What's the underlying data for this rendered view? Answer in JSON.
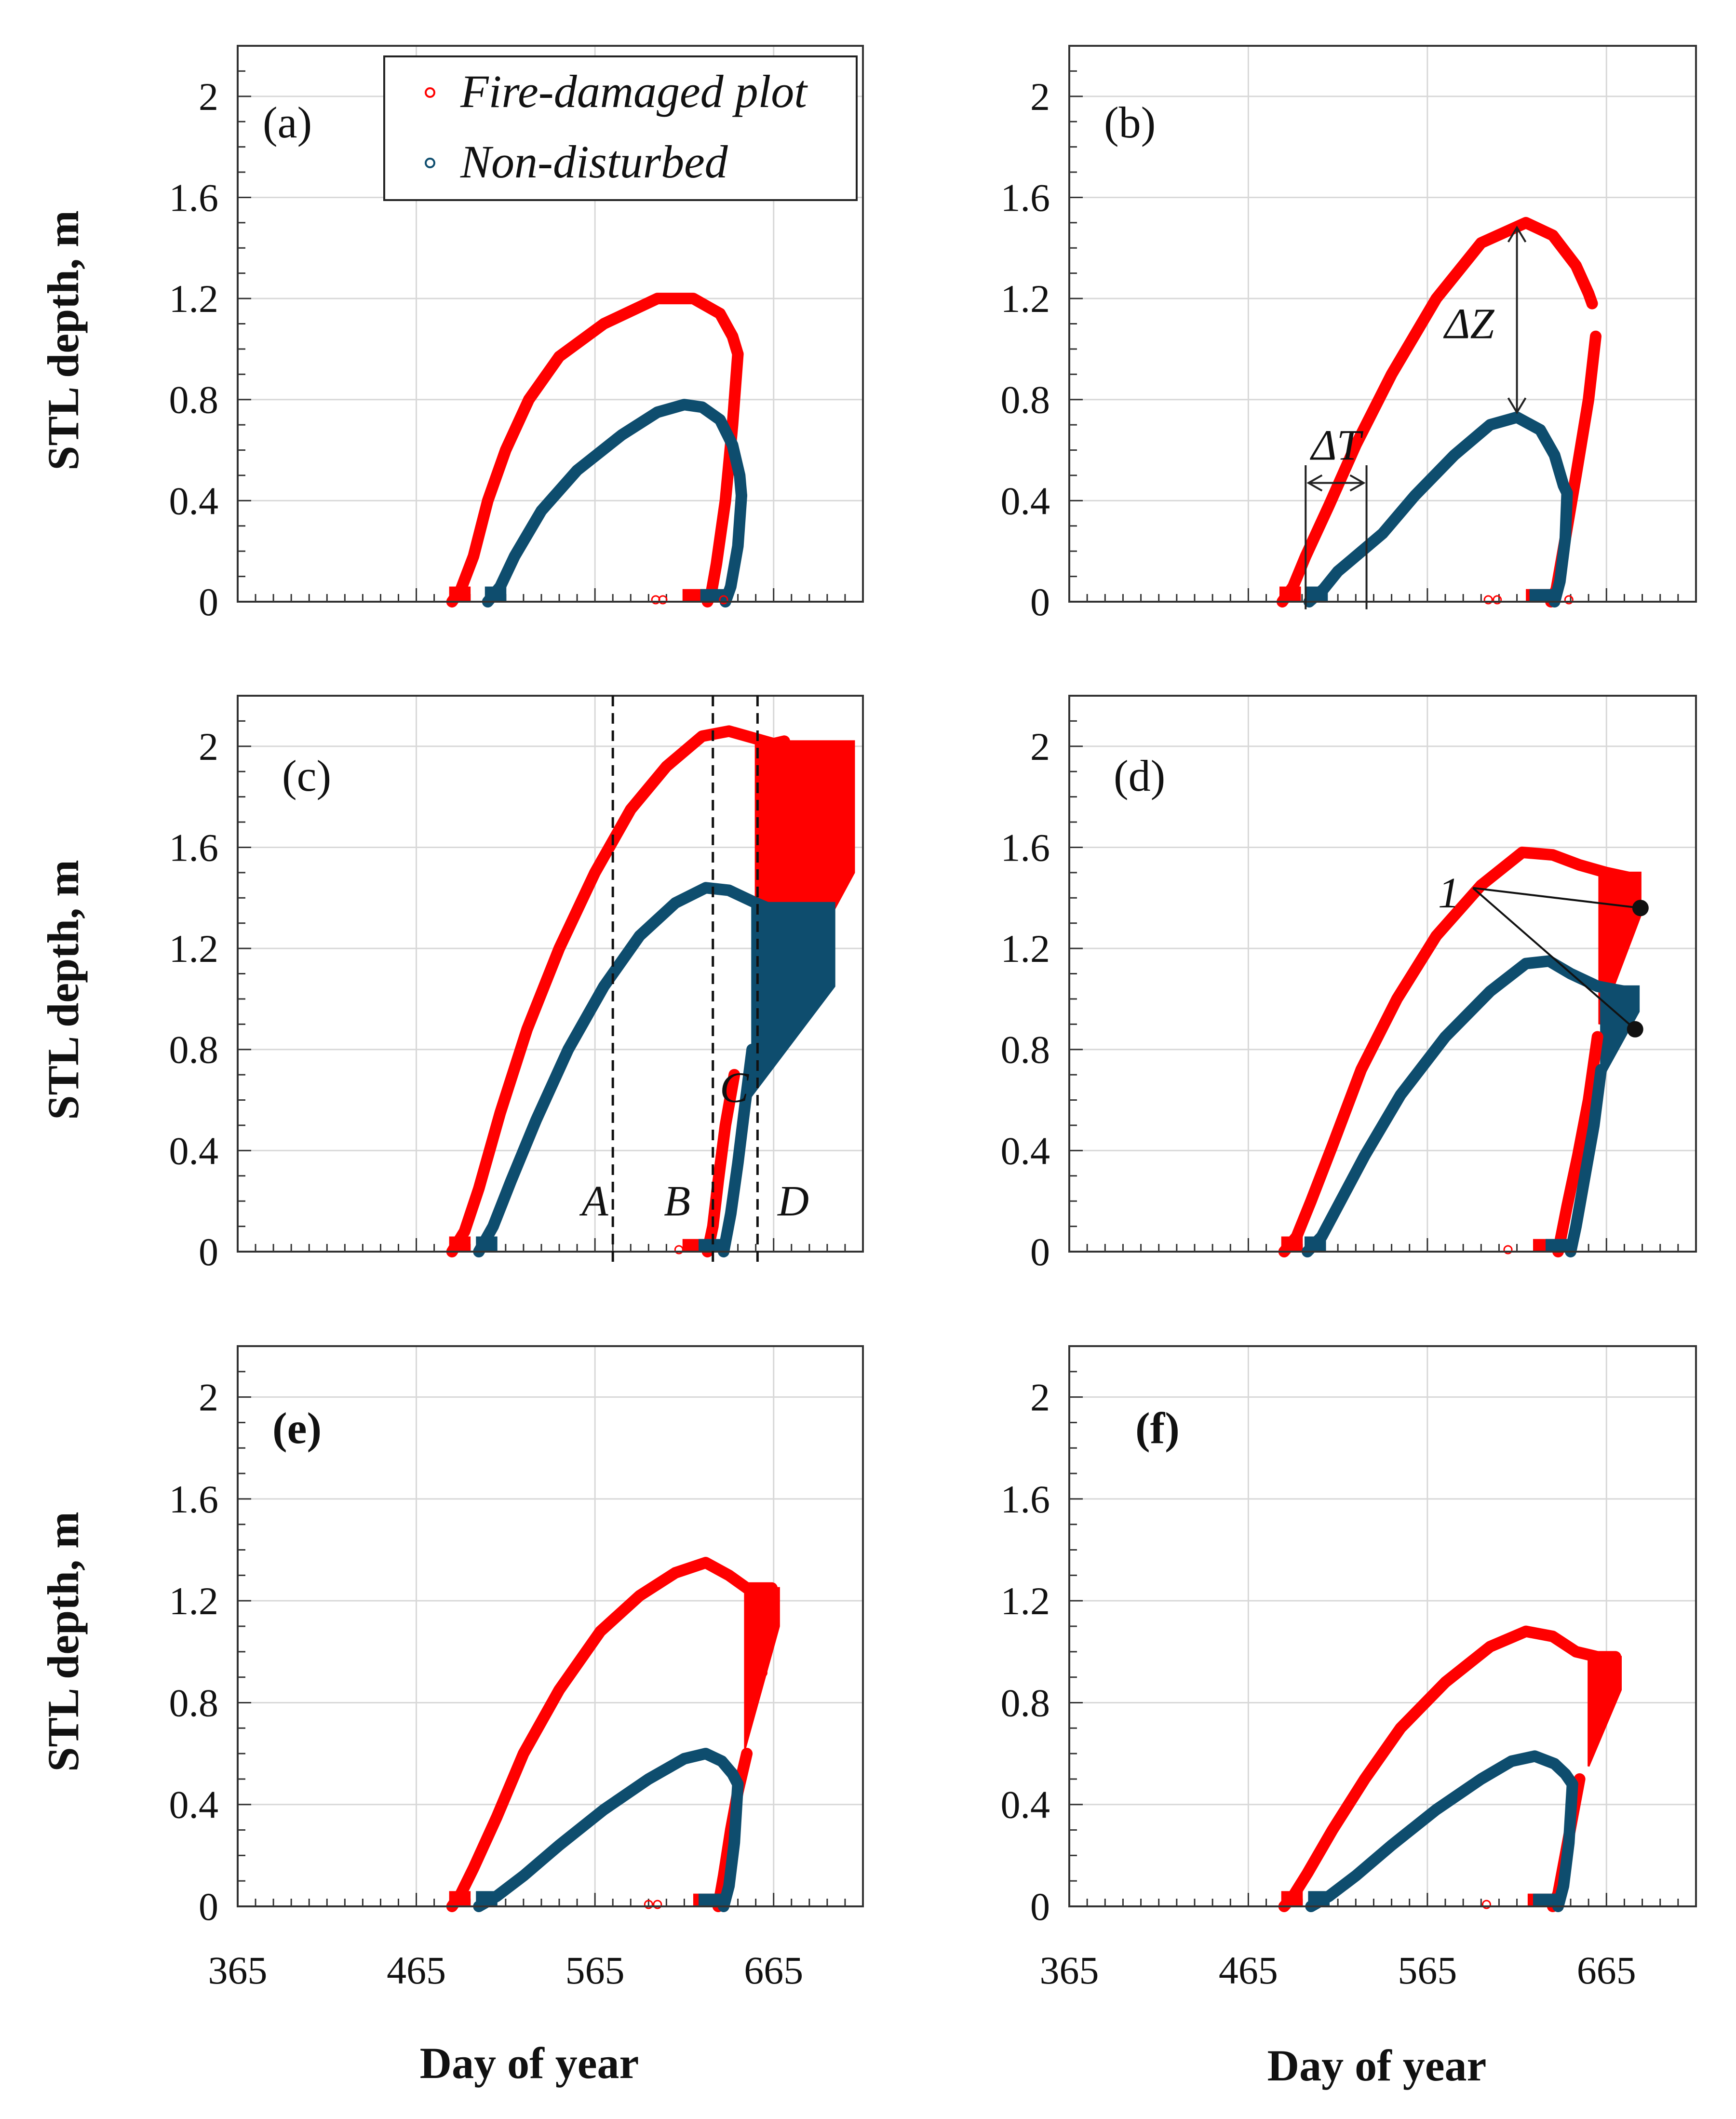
{
  "colors": {
    "fire": "#ff0000",
    "nondisturbed": "#0e4d6e",
    "grid": "#d8d8d8",
    "axis": "#333333"
  },
  "chart_data": {
    "type": "scatter",
    "xlabel": "Day of year",
    "ylabel": "STL depth, m",
    "xlim": [
      365,
      715
    ],
    "ylim": [
      0,
      2.2
    ],
    "xticks": [
      365,
      465,
      565,
      665
    ],
    "yticks": [
      0,
      0.4,
      0.8,
      1.2,
      1.6,
      2
    ],
    "yticklabels": [
      "0",
      "0.4",
      "0.8",
      "1.2",
      "1.6",
      "2"
    ],
    "legend": {
      "position": "top-left",
      "entries": [
        "Fire-damaged plot",
        "Non-disturbed"
      ]
    },
    "panels": [
      {
        "label": "(a)",
        "fire": {
          "thaw": [
            [
              485,
              0
            ],
            [
              490,
              0.05
            ],
            [
              497,
              0.18
            ],
            [
              505,
              0.4
            ],
            [
              515,
              0.6
            ],
            [
              528,
              0.8
            ],
            [
              545,
              0.97
            ],
            [
              570,
              1.1
            ],
            [
              600,
              1.2
            ],
            [
              620,
              1.2
            ],
            [
              635,
              1.14
            ],
            [
              642,
              1.05
            ],
            [
              645,
              0.98
            ]
          ],
          "freeze": [
            [
              645,
              0.98
            ],
            [
              642,
              0.7
            ],
            [
              638,
              0.4
            ],
            [
              633,
              0.15
            ],
            [
              630,
              0.03
            ],
            [
              628,
              0
            ]
          ]
        },
        "nondisturbed": {
          "thaw": [
            [
              505,
              0
            ],
            [
              512,
              0.06
            ],
            [
              520,
              0.18
            ],
            [
              535,
              0.36
            ],
            [
              555,
              0.52
            ],
            [
              580,
              0.66
            ],
            [
              600,
              0.75
            ],
            [
              615,
              0.78
            ],
            [
              625,
              0.77
            ],
            [
              635,
              0.72
            ],
            [
              642,
              0.62
            ],
            [
              646,
              0.5
            ],
            [
              647,
              0.42
            ]
          ],
          "freeze": [
            [
              647,
              0.42
            ],
            [
              645,
              0.22
            ],
            [
              641,
              0.06
            ],
            [
              638,
              0
            ]
          ]
        }
      },
      {
        "label": "(b)",
        "fire": {
          "thaw": [
            [
              484,
              0
            ],
            [
              490,
              0.06
            ],
            [
              497,
              0.18
            ],
            [
              510,
              0.38
            ],
            [
              525,
              0.62
            ],
            [
              545,
              0.9
            ],
            [
              570,
              1.2
            ],
            [
              595,
              1.42
            ],
            [
              620,
              1.5
            ],
            [
              635,
              1.45
            ],
            [
              648,
              1.33
            ],
            [
              655,
              1.22
            ],
            [
              657,
              1.18
            ]
          ],
          "freeze": [
            [
              659,
              1.05
            ],
            [
              655,
              0.8
            ],
            [
              648,
              0.5
            ],
            [
              642,
              0.25
            ],
            [
              637,
              0.05
            ],
            [
              634,
              0
            ]
          ]
        },
        "nondisturbed": {
          "thaw": [
            [
              499,
              0
            ],
            [
              507,
              0.05
            ],
            [
              515,
              0.12
            ],
            [
              525,
              0.18
            ],
            [
              540,
              0.27
            ],
            [
              558,
              0.42
            ],
            [
              580,
              0.58
            ],
            [
              600,
              0.7
            ],
            [
              615,
              0.73
            ],
            [
              628,
              0.68
            ],
            [
              636,
              0.58
            ],
            [
              641,
              0.46
            ],
            [
              643,
              0.43
            ]
          ],
          "freeze": [
            [
              643,
              0.43
            ],
            [
              642,
              0.25
            ],
            [
              639,
              0.08
            ],
            [
              636,
              0
            ]
          ]
        }
      },
      {
        "label": "(c)",
        "fire": {
          "thaw": [
            [
              485,
              0
            ],
            [
              492,
              0.08
            ],
            [
              500,
              0.25
            ],
            [
              512,
              0.55
            ],
            [
              527,
              0.88
            ],
            [
              545,
              1.2
            ],
            [
              565,
              1.5
            ],
            [
              585,
              1.75
            ],
            [
              605,
              1.92
            ],
            [
              625,
              2.04
            ],
            [
              640,
              2.06
            ],
            [
              655,
              2.03
            ],
            [
              665,
              2.01
            ],
            [
              671,
              2.02
            ]
          ],
          "freeze": [
            [
              643,
              0.7
            ],
            [
              638,
              0.5
            ],
            [
              634,
              0.28
            ],
            [
              631,
              0.1
            ],
            [
              628,
              0
            ]
          ]
        },
        "nondisturbed": {
          "thaw": [
            [
              500,
              0
            ],
            [
              508,
              0.1
            ],
            [
              518,
              0.28
            ],
            [
              532,
              0.52
            ],
            [
              550,
              0.8
            ],
            [
              570,
              1.05
            ],
            [
              590,
              1.25
            ],
            [
              610,
              1.38
            ],
            [
              627,
              1.44
            ],
            [
              640,
              1.43
            ],
            [
              655,
              1.38
            ],
            [
              665,
              1.35
            ]
          ],
          "freeze": [
            [
              653,
              0.8
            ],
            [
              649,
              0.58
            ],
            [
              645,
              0.35
            ],
            [
              641,
              0.15
            ],
            [
              637,
              0
            ]
          ]
        }
      },
      {
        "label": "(d)",
        "fire": {
          "thaw": [
            [
              485,
              0
            ],
            [
              492,
              0.06
            ],
            [
              500,
              0.2
            ],
            [
              512,
              0.42
            ],
            [
              528,
              0.72
            ],
            [
              548,
              1.0
            ],
            [
              570,
              1.25
            ],
            [
              595,
              1.45
            ],
            [
              618,
              1.58
            ],
            [
              635,
              1.57
            ],
            [
              650,
              1.53
            ],
            [
              665,
              1.5
            ],
            [
              678,
              1.48
            ]
          ],
          "freeze": [
            [
              660,
              0.85
            ],
            [
              655,
              0.6
            ],
            [
              649,
              0.38
            ],
            [
              643,
              0.18
            ],
            [
              638,
              0
            ]
          ]
        },
        "nondisturbed": {
          "thaw": [
            [
              498,
              0
            ],
            [
              506,
              0.06
            ],
            [
              515,
              0.18
            ],
            [
              530,
              0.38
            ],
            [
              550,
              0.62
            ],
            [
              575,
              0.85
            ],
            [
              600,
              1.03
            ],
            [
              620,
              1.14
            ],
            [
              633,
              1.15
            ],
            [
              645,
              1.1
            ],
            [
              660,
              1.05
            ],
            [
              675,
              1.03
            ]
          ],
          "freeze": [
            [
              662,
              0.72
            ],
            [
              658,
              0.5
            ],
            [
              653,
              0.3
            ],
            [
              648,
              0.1
            ],
            [
              645,
              0
            ]
          ]
        }
      },
      {
        "label": "(e)",
        "fire": {
          "thaw": [
            [
              485,
              0
            ],
            [
              490,
              0.05
            ],
            [
              497,
              0.15
            ],
            [
              510,
              0.35
            ],
            [
              525,
              0.6
            ],
            [
              545,
              0.85
            ],
            [
              568,
              1.08
            ],
            [
              590,
              1.22
            ],
            [
              610,
              1.31
            ],
            [
              627,
              1.35
            ],
            [
              640,
              1.3
            ],
            [
              650,
              1.25
            ],
            [
              664,
              1.25
            ]
          ],
          "freeze": [
            [
              650,
              0.6
            ],
            [
              645,
              0.45
            ],
            [
              641,
              0.3
            ],
            [
              637,
              0.12
            ],
            [
              634,
              0
            ]
          ]
        },
        "nondisturbed": {
          "thaw": [
            [
              500,
              0
            ],
            [
              510,
              0.04
            ],
            [
              525,
              0.12
            ],
            [
              545,
              0.24
            ],
            [
              570,
              0.38
            ],
            [
              595,
              0.5
            ],
            [
              615,
              0.58
            ],
            [
              627,
              0.6
            ],
            [
              636,
              0.57
            ],
            [
              642,
              0.52
            ],
            [
              645,
              0.48
            ]
          ],
          "freeze": [
            [
              645,
              0.48
            ],
            [
              643,
              0.25
            ],
            [
              640,
              0.08
            ],
            [
              637,
              0
            ]
          ]
        }
      },
      {
        "label": "(f)",
        "fire": {
          "thaw": [
            [
              485,
              0
            ],
            [
              490,
              0.04
            ],
            [
              498,
              0.13
            ],
            [
              512,
              0.3
            ],
            [
              530,
              0.5
            ],
            [
              550,
              0.7
            ],
            [
              575,
              0.88
            ],
            [
              600,
              1.02
            ],
            [
              620,
              1.08
            ],
            [
              635,
              1.06
            ],
            [
              648,
              1.0
            ],
            [
              660,
              0.98
            ],
            [
              670,
              0.98
            ]
          ],
          "freeze": [
            [
              650,
              0.5
            ],
            [
              646,
              0.35
            ],
            [
              642,
              0.2
            ],
            [
              638,
              0.05
            ],
            [
              635,
              0
            ]
          ]
        },
        "nondisturbed": {
          "thaw": [
            [
              500,
              0
            ],
            [
              510,
              0.04
            ],
            [
              525,
              0.12
            ],
            [
              545,
              0.24
            ],
            [
              570,
              0.38
            ],
            [
              595,
              0.5
            ],
            [
              612,
              0.57
            ],
            [
              625,
              0.59
            ],
            [
              636,
              0.56
            ],
            [
              642,
              0.52
            ],
            [
              646,
              0.48
            ]
          ],
          "freeze": [
            [
              646,
              0.48
            ],
            [
              644,
              0.25
            ],
            [
              641,
              0.08
            ],
            [
              638,
              0
            ]
          ]
        }
      }
    ],
    "noise_bands": [
      {
        "panel": 2,
        "series": "fire",
        "x": [
          655,
          710
        ],
        "y_upper": 2.02,
        "y_lower_start": 0.78,
        "y_lower_end": 1.5
      },
      {
        "panel": 2,
        "series": "nondisturbed",
        "x": [
          653,
          699
        ],
        "y_upper": 1.38,
        "y_lower_start": 0.62,
        "y_lower_end": 1.05
      },
      {
        "panel": 3,
        "series": "fire",
        "x": [
          661,
          684
        ],
        "y_upper": 1.5,
        "y_lower_start": 0.9,
        "y_lower_end": 1.33
      },
      {
        "panel": 3,
        "series": "nondisturbed",
        "x": [
          662,
          683
        ],
        "y_upper": 1.05,
        "y_lower_start": 0.68,
        "y_lower_end": 0.95
      },
      {
        "panel": 4,
        "series": "fire",
        "x": [
          649,
          668
        ],
        "y_upper": 1.25,
        "y_lower_start": 0.62,
        "y_lower_end": 1.1
      },
      {
        "panel": 5,
        "series": "fire",
        "x": [
          655,
          673
        ],
        "y_upper": 0.98,
        "y_lower_start": 0.55,
        "y_lower_end": 0.85
      }
    ],
    "outliers": [
      {
        "panel": 0,
        "series": "fire",
        "points": [
          [
            599,
            0
          ],
          [
            603,
            0
          ],
          [
            637,
            0
          ]
        ]
      },
      {
        "panel": 1,
        "series": "fire",
        "points": [
          [
            599,
            0
          ],
          [
            604,
            0
          ],
          [
            644,
            0
          ]
        ]
      },
      {
        "panel": 2,
        "series": "fire",
        "points": [
          [
            612,
            0
          ]
        ]
      },
      {
        "panel": 3,
        "series": "fire",
        "points": [
          [
            610,
            0
          ],
          [
            681,
            1.38
          ]
        ]
      },
      {
        "panel": 4,
        "series": "fire",
        "points": [
          [
            595,
            0
          ],
          [
            600,
            0
          ],
          [
            659,
            1.0
          ],
          [
            659,
            0.94
          ],
          [
            659,
            0.91
          ]
        ]
      },
      {
        "panel": 5,
        "series": "fire",
        "points": [
          [
            598,
            0
          ]
        ]
      }
    ],
    "annotations": {
      "panel_b": {
        "delta_z_label": "ΔZ",
        "delta_z_x": 615,
        "delta_z_from": 1.5,
        "delta_z_to": 0.73,
        "delta_t_label": "ΔT",
        "delta_t_x0": 497,
        "delta_t_x1": 531,
        "delta_t_y": 0.47
      },
      "panel_c": {
        "vlines": [
          575,
          631,
          656
        ],
        "zones": [
          {
            "label": "A",
            "x": 565,
            "y": 0.2
          },
          {
            "label": "B",
            "x": 611,
            "y": 0.2
          },
          {
            "label": "C",
            "x": 643,
            "y": 0.65
          },
          {
            "label": "D",
            "x": 676,
            "y": 0.2
          }
        ]
      },
      "panel_d": {
        "marker_label": "1",
        "label_x": 577,
        "label_y": 1.42,
        "marker_points": [
          [
            684,
            1.36
          ],
          [
            681,
            0.88
          ]
        ]
      }
    }
  }
}
